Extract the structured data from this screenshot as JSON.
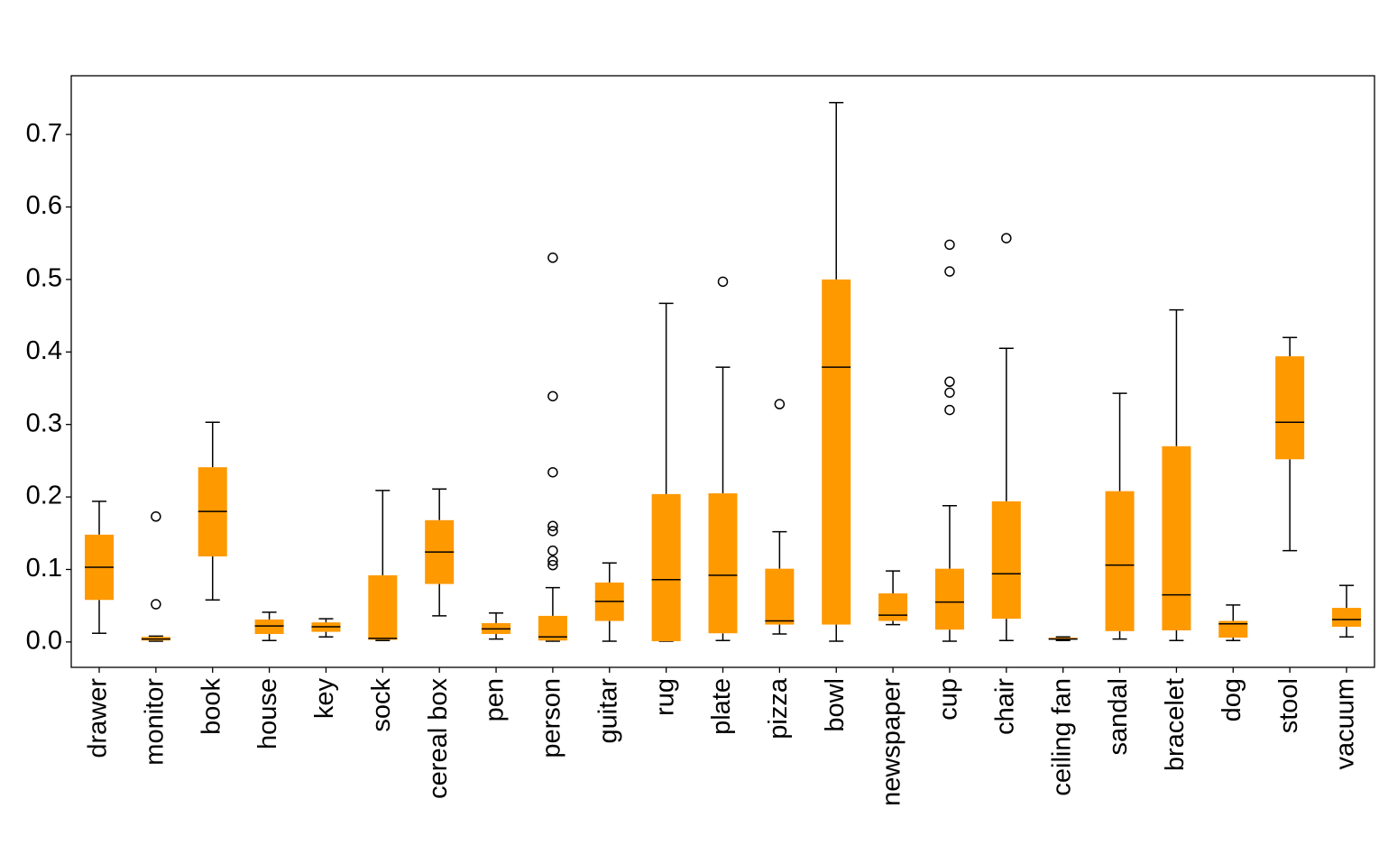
{
  "chart_data": {
    "type": "box",
    "color": "#ff9900",
    "categories": [
      "drawer",
      "monitor",
      "book",
      "house",
      "key",
      "sock",
      "cereal box",
      "pen",
      "person",
      "guitar",
      "rug",
      "plate",
      "pizza",
      "bowl",
      "newspaper",
      "cup",
      "chair",
      "ceiling fan",
      "sandal",
      "bracelet",
      "dog",
      "stool",
      "vacuum"
    ],
    "boxes": [
      {
        "whislo": 0.012,
        "q1": 0.058,
        "med": 0.103,
        "q3": 0.148,
        "whishi": 0.194,
        "fliers": []
      },
      {
        "whislo": 0.001,
        "q1": 0.002,
        "med": 0.004,
        "q3": 0.007,
        "whishi": 0.008,
        "fliers": [
          0.052,
          0.173
        ]
      },
      {
        "whislo": 0.058,
        "q1": 0.118,
        "med": 0.18,
        "q3": 0.241,
        "whishi": 0.303,
        "fliers": []
      },
      {
        "whislo": 0.002,
        "q1": 0.011,
        "med": 0.022,
        "q3": 0.031,
        "whishi": 0.041,
        "fliers": []
      },
      {
        "whislo": 0.007,
        "q1": 0.014,
        "med": 0.021,
        "q3": 0.027,
        "whishi": 0.032,
        "fliers": []
      },
      {
        "whislo": 0.002,
        "q1": 0.003,
        "med": 0.005,
        "q3": 0.092,
        "whishi": 0.209,
        "fliers": []
      },
      {
        "whislo": 0.036,
        "q1": 0.08,
        "med": 0.124,
        "q3": 0.168,
        "whishi": 0.211,
        "fliers": []
      },
      {
        "whislo": 0.004,
        "q1": 0.011,
        "med": 0.018,
        "q3": 0.026,
        "whishi": 0.04,
        "fliers": []
      },
      {
        "whislo": 0.001,
        "q1": 0.002,
        "med": 0.007,
        "q3": 0.036,
        "whishi": 0.075,
        "fliers": [
          0.106,
          0.112,
          0.126,
          0.153,
          0.16,
          0.234,
          0.339,
          0.53
        ]
      },
      {
        "whislo": 0.001,
        "q1": 0.029,
        "med": 0.056,
        "q3": 0.082,
        "whishi": 0.109,
        "fliers": []
      },
      {
        "whislo": 0.001,
        "q1": 0.001,
        "med": 0.086,
        "q3": 0.204,
        "whishi": 0.467,
        "fliers": []
      },
      {
        "whislo": 0.002,
        "q1": 0.012,
        "med": 0.092,
        "q3": 0.205,
        "whishi": 0.379,
        "fliers": [
          0.497
        ]
      },
      {
        "whislo": 0.011,
        "q1": 0.024,
        "med": 0.029,
        "q3": 0.101,
        "whishi": 0.152,
        "fliers": [
          0.328
        ]
      },
      {
        "whislo": 0.001,
        "q1": 0.024,
        "med": 0.379,
        "q3": 0.5,
        "whishi": 0.744,
        "fliers": []
      },
      {
        "whislo": 0.024,
        "q1": 0.029,
        "med": 0.037,
        "q3": 0.067,
        "whishi": 0.098,
        "fliers": []
      },
      {
        "whislo": 0.001,
        "q1": 0.017,
        "med": 0.055,
        "q3": 0.101,
        "whishi": 0.188,
        "fliers": [
          0.32,
          0.344,
          0.359,
          0.511,
          0.548
        ]
      },
      {
        "whislo": 0.002,
        "q1": 0.032,
        "med": 0.094,
        "q3": 0.194,
        "whishi": 0.405,
        "fliers": [
          0.557
        ]
      },
      {
        "whislo": 0.002,
        "q1": 0.003,
        "med": 0.004,
        "q3": 0.006,
        "whishi": 0.007,
        "fliers": []
      },
      {
        "whislo": 0.004,
        "q1": 0.015,
        "med": 0.106,
        "q3": 0.208,
        "whishi": 0.343,
        "fliers": []
      },
      {
        "whislo": 0.002,
        "q1": 0.016,
        "med": 0.065,
        "q3": 0.27,
        "whishi": 0.458,
        "fliers": []
      },
      {
        "whislo": 0.002,
        "q1": 0.006,
        "med": 0.025,
        "q3": 0.029,
        "whishi": 0.051,
        "fliers": []
      },
      {
        "whislo": 0.126,
        "q1": 0.252,
        "med": 0.303,
        "q3": 0.394,
        "whishi": 0.42,
        "fliers": []
      },
      {
        "whislo": 0.007,
        "q1": 0.021,
        "med": 0.031,
        "q3": 0.047,
        "whishi": 0.078,
        "fliers": []
      }
    ],
    "ylim": [
      -0.035,
      0.781
    ],
    "yticks": [
      {
        "value": 0,
        "label": "0.0"
      },
      0.1,
      0.2,
      0.3,
      0.4,
      0.5,
      0.6,
      0.7
    ]
  }
}
